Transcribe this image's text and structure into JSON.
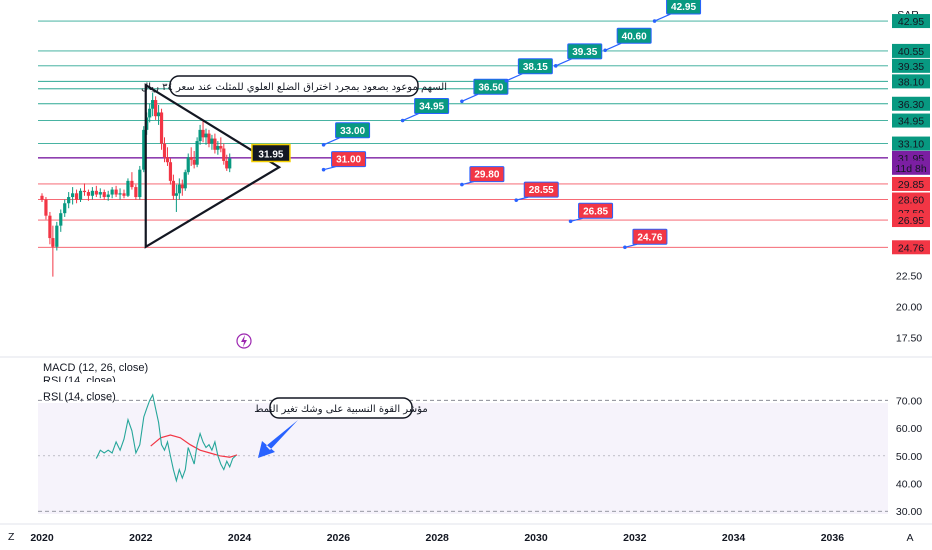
{
  "currency": "SAR",
  "corner_left": "Z",
  "corner_right": "A",
  "chart_data": {
    "type": "line",
    "title": "",
    "x_ticks": [
      "2020",
      "2022",
      "2024",
      "2026",
      "2028",
      "2030",
      "2032",
      "2034",
      "2036"
    ],
    "x_tick_years": [
      2020,
      2022,
      2024,
      2026,
      2028,
      2030,
      2032,
      2034,
      2036
    ],
    "price_axis": {
      "ticks": [
        "22.50",
        "20.00",
        "17.50"
      ],
      "tick_values": [
        22.5,
        20.0,
        17.5
      ],
      "ylim": [
        16.5,
        44.0
      ]
    },
    "price_badges": [
      {
        "text": "42.95",
        "value": 42.95,
        "color": "#089981"
      },
      {
        "text": "40.55",
        "value": 40.55,
        "color": "#089981"
      },
      {
        "text": "39.35",
        "value": 39.35,
        "color": "#089981"
      },
      {
        "text": "38.10",
        "value": 38.1,
        "color": "#089981"
      },
      {
        "text": "36.30",
        "value": 36.3,
        "color": "#089981"
      },
      {
        "text": "34.95",
        "value": 34.95,
        "color": "#089981"
      },
      {
        "text": "33.10",
        "value": 33.1,
        "color": "#089981"
      },
      {
        "text": "31.95",
        "value": 31.95,
        "color": "#7b1fa2"
      },
      {
        "text": "11d 8h",
        "value": 31.15,
        "color": "#7b1fa2"
      },
      {
        "text": "29.85",
        "value": 29.85,
        "color": "#f23645"
      },
      {
        "text": "28.60",
        "value": 28.6,
        "color": "#f23645"
      },
      {
        "text": "27.50",
        "value": 27.5,
        "color": "#f23645",
        "partial": true
      },
      {
        "text": "26.95",
        "value": 26.95,
        "color": "#f23645"
      },
      {
        "text": "24.76",
        "value": 24.76,
        "color": "#f23645"
      }
    ],
    "extra_levels": [
      {
        "value": 37.5,
        "color": "#089981"
      }
    ],
    "green_targets": [
      {
        "text": "33.00",
        "year": 2025.7,
        "value": 33.0
      },
      {
        "text": "34.95",
        "year": 2027.3,
        "value": 34.95
      },
      {
        "text": "36.50",
        "year": 2028.5,
        "value": 36.5
      },
      {
        "text": "38.15",
        "year": 2029.4,
        "value": 38.15
      },
      {
        "text": "39.35",
        "year": 2030.4,
        "value": 39.35
      },
      {
        "text": "40.60",
        "year": 2031.4,
        "value": 40.6
      },
      {
        "text": "42.95",
        "year": 2032.4,
        "value": 42.95
      }
    ],
    "red_targets": [
      {
        "text": "31.00",
        "year": 2025.7,
        "value": 31.0
      },
      {
        "text": "29.80",
        "year": 2028.5,
        "value": 29.8
      },
      {
        "text": "28.55",
        "year": 2029.6,
        "value": 28.55
      },
      {
        "text": "26.85",
        "year": 2030.7,
        "value": 26.85
      },
      {
        "text": "24.76",
        "year": 2031.8,
        "value": 24.76
      }
    ],
    "last_price_label": "31.95",
    "triangle": {
      "apex": [
        2022.1,
        37.8
      ],
      "base": [
        2022.1,
        24.8
      ],
      "point": [
        2024.8,
        31.2
      ]
    },
    "annotation_price": "السهم موعود بصعود بمجرد اختراق الضلع العلوي للمثلث عند سعر ٣٤ ريال",
    "candles": [
      [
        2020.0,
        28.9,
        29.1,
        28.4,
        28.6
      ],
      [
        2020.08,
        28.6,
        28.8,
        27.0,
        27.3
      ],
      [
        2020.16,
        27.3,
        27.6,
        25.0,
        25.5
      ],
      [
        2020.22,
        25.5,
        26.5,
        22.4,
        24.8
      ],
      [
        2020.3,
        24.8,
        26.8,
        24.5,
        26.5
      ],
      [
        2020.38,
        26.5,
        27.8,
        26.0,
        27.5
      ],
      [
        2020.46,
        27.5,
        28.6,
        27.2,
        28.3
      ],
      [
        2020.54,
        28.3,
        29.2,
        27.9,
        28.8
      ],
      [
        2020.62,
        28.8,
        29.6,
        28.2,
        29.1
      ],
      [
        2020.7,
        29.1,
        29.4,
        28.3,
        28.6
      ],
      [
        2020.78,
        28.6,
        29.5,
        28.4,
        29.3
      ],
      [
        2020.86,
        29.3,
        29.9,
        28.9,
        29.2
      ],
      [
        2020.94,
        29.2,
        29.4,
        28.5,
        28.9
      ],
      [
        2021.02,
        28.9,
        29.6,
        28.6,
        29.3
      ],
      [
        2021.1,
        29.3,
        29.7,
        28.8,
        29.0
      ],
      [
        2021.18,
        29.0,
        29.5,
        28.7,
        29.2
      ],
      [
        2021.26,
        29.2,
        29.4,
        28.6,
        28.8
      ],
      [
        2021.34,
        28.8,
        29.3,
        28.5,
        29.0
      ],
      [
        2021.42,
        29.0,
        29.6,
        28.7,
        29.4
      ],
      [
        2021.5,
        29.4,
        29.7,
        28.8,
        29.0
      ],
      [
        2021.58,
        29.0,
        29.5,
        28.6,
        29.1
      ],
      [
        2021.66,
        29.1,
        29.4,
        28.7,
        28.9
      ],
      [
        2021.74,
        28.9,
        30.3,
        28.8,
        30.1
      ],
      [
        2021.82,
        30.1,
        30.8,
        29.4,
        29.6
      ],
      [
        2021.9,
        29.6,
        29.8,
        28.6,
        28.8
      ],
      [
        2021.98,
        28.8,
        31.3,
        28.6,
        31.0
      ],
      [
        2022.06,
        31.0,
        34.5,
        30.8,
        34.2
      ],
      [
        2022.12,
        34.2,
        35.6,
        33.8,
        35.2
      ],
      [
        2022.18,
        35.2,
        36.3,
        34.8,
        35.9
      ],
      [
        2022.24,
        35.9,
        37.2,
        35.3,
        36.6
      ],
      [
        2022.3,
        36.6,
        36.9,
        35.0,
        35.3
      ],
      [
        2022.36,
        35.3,
        36.2,
        34.6,
        35.6
      ],
      [
        2022.42,
        35.6,
        35.9,
        32.6,
        33.1
      ],
      [
        2022.48,
        33.1,
        33.6,
        31.6,
        32.0
      ],
      [
        2022.54,
        32.0,
        32.8,
        31.3,
        31.6
      ],
      [
        2022.6,
        31.6,
        31.9,
        29.8,
        30.1
      ],
      [
        2022.66,
        30.1,
        30.6,
        28.6,
        28.9
      ],
      [
        2022.72,
        28.9,
        29.8,
        27.6,
        29.1
      ],
      [
        2022.78,
        29.1,
        30.3,
        28.6,
        29.8
      ],
      [
        2022.84,
        29.8,
        30.2,
        28.9,
        29.5
      ],
      [
        2022.9,
        29.5,
        31.0,
        29.3,
        30.8
      ],
      [
        2022.96,
        30.8,
        32.3,
        30.6,
        32.0
      ],
      [
        2023.02,
        32.0,
        32.8,
        31.3,
        31.8
      ],
      [
        2023.08,
        31.8,
        32.5,
        31.1,
        31.4
      ],
      [
        2023.14,
        31.4,
        33.6,
        31.2,
        33.3
      ],
      [
        2023.2,
        33.3,
        34.6,
        33.0,
        34.2
      ],
      [
        2023.26,
        34.2,
        34.9,
        33.2,
        33.6
      ],
      [
        2023.32,
        33.6,
        34.3,
        33.0,
        33.9
      ],
      [
        2023.38,
        33.9,
        34.2,
        32.8,
        33.1
      ],
      [
        2023.44,
        33.1,
        33.8,
        32.6,
        33.5
      ],
      [
        2023.5,
        33.5,
        33.9,
        32.3,
        32.6
      ],
      [
        2023.56,
        32.6,
        33.3,
        32.2,
        32.9
      ],
      [
        2023.62,
        32.9,
        33.6,
        32.4,
        32.7
      ],
      [
        2023.68,
        32.7,
        33.1,
        31.4,
        31.7
      ],
      [
        2023.74,
        31.7,
        32.2,
        30.9,
        31.1
      ],
      [
        2023.8,
        31.1,
        32.3,
        30.8,
        31.9
      ]
    ]
  },
  "indicators": {
    "macd_label": "MACD (12, 26, close)",
    "rsi_overlap_label": "RSI (14, close)",
    "rsi_label": "RSI (14, close)",
    "ticks": [
      "70.00",
      "60.00",
      "50.00",
      "40.00",
      "30.00"
    ],
    "tick_values": [
      70,
      60,
      50,
      40,
      30
    ],
    "ylim": [
      29,
      73
    ],
    "upper_band": 70,
    "middle_band": 50,
    "lower_band": 30,
    "rsi_line": [
      [
        2021.1,
        49
      ],
      [
        2021.18,
        52
      ],
      [
        2021.26,
        51
      ],
      [
        2021.34,
        52
      ],
      [
        2021.42,
        51
      ],
      [
        2021.5,
        55
      ],
      [
        2021.58,
        52
      ],
      [
        2021.66,
        56
      ],
      [
        2021.74,
        63
      ],
      [
        2021.82,
        59
      ],
      [
        2021.9,
        51
      ],
      [
        2021.98,
        54
      ],
      [
        2022.06,
        64
      ],
      [
        2022.12,
        67
      ],
      [
        2022.18,
        70
      ],
      [
        2022.24,
        72
      ],
      [
        2022.3,
        67
      ],
      [
        2022.36,
        62
      ],
      [
        2022.42,
        54
      ],
      [
        2022.48,
        52
      ],
      [
        2022.54,
        55
      ],
      [
        2022.6,
        50
      ],
      [
        2022.66,
        45
      ],
      [
        2022.72,
        41
      ],
      [
        2022.78,
        45
      ],
      [
        2022.84,
        42
      ],
      [
        2022.9,
        45
      ],
      [
        2022.96,
        53
      ],
      [
        2023.02,
        50
      ],
      [
        2023.08,
        47
      ],
      [
        2023.14,
        54
      ],
      [
        2023.2,
        58
      ],
      [
        2023.26,
        55
      ],
      [
        2023.32,
        53
      ],
      [
        2023.38,
        54
      ],
      [
        2023.44,
        52
      ],
      [
        2023.5,
        55
      ],
      [
        2023.56,
        50
      ],
      [
        2023.62,
        47
      ],
      [
        2023.68,
        45
      ],
      [
        2023.74,
        48
      ],
      [
        2023.8,
        46
      ],
      [
        2023.86,
        49
      ],
      [
        2023.92,
        50
      ]
    ],
    "rsi_ma": [
      [
        2022.2,
        53.5
      ],
      [
        2022.4,
        56.5
      ],
      [
        2022.6,
        57.5
      ],
      [
        2022.8,
        56.5
      ],
      [
        2023.0,
        54
      ],
      [
        2023.2,
        52
      ],
      [
        2023.4,
        51
      ],
      [
        2023.6,
        50
      ],
      [
        2023.8,
        49.5
      ],
      [
        2023.95,
        50.3
      ]
    ],
    "annotation_rsi": "مؤشر القوة النسبية على وشك تغير النمط"
  }
}
